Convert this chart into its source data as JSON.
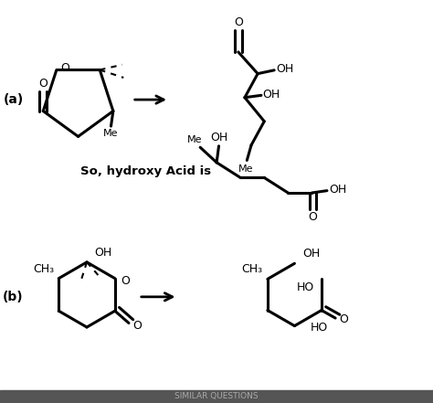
{
  "background_color": "#ffffff",
  "title": "",
  "fig_width": 4.74,
  "fig_height": 4.41,
  "dpi": 100,
  "label_a": "(a)",
  "label_b": "(b)",
  "so_hydroxy_text": "So, hydroxy Acid is",
  "similar_text": "SIMILAR QUESTIONS",
  "bottom_bar_color": "#555555",
  "text_color": "#000000"
}
